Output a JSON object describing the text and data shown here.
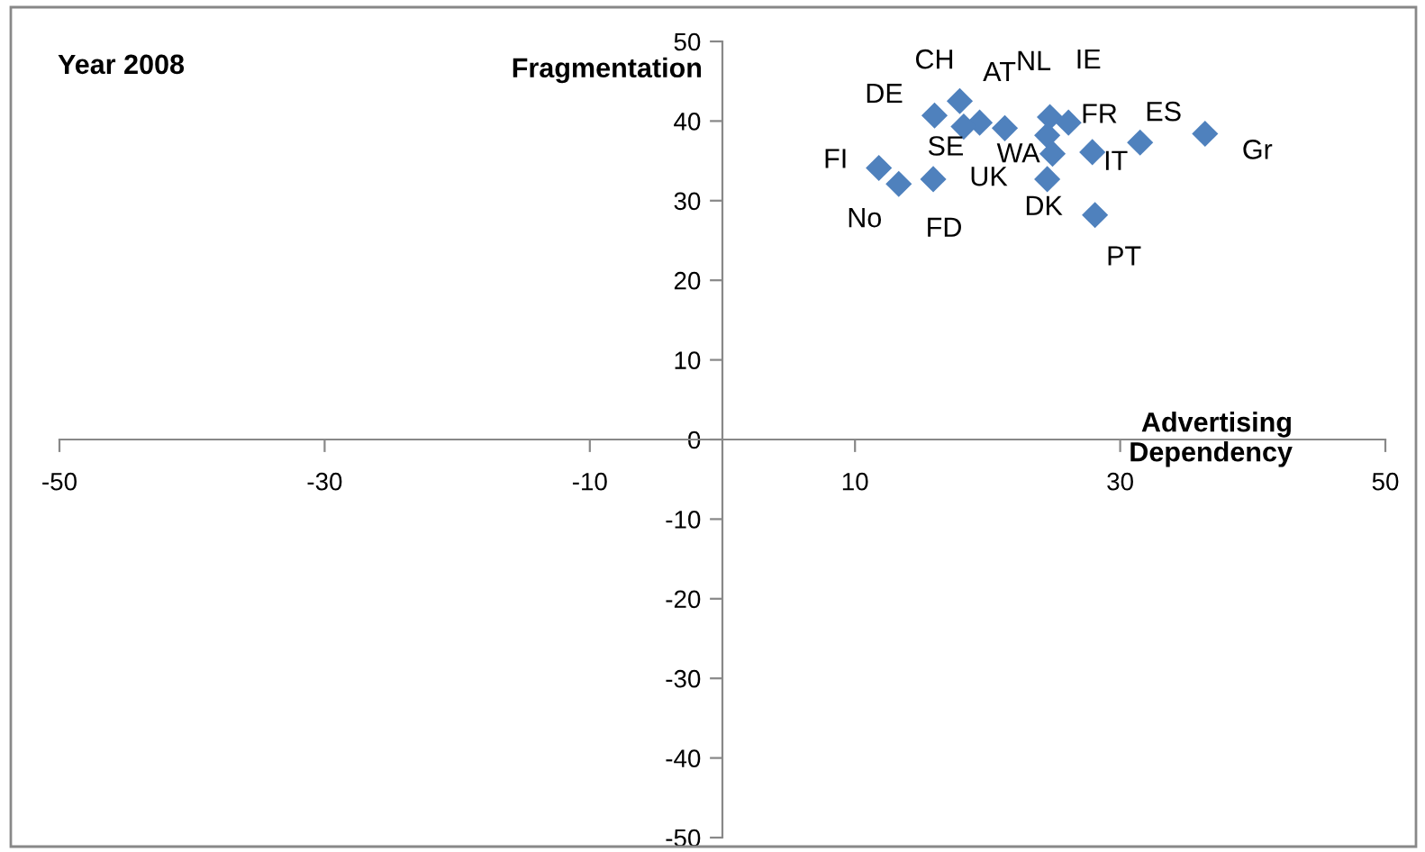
{
  "chart_data": {
    "type": "scatter",
    "title": "Year 2008",
    "xlabel": "Advertising\nDependency",
    "ylabel": "Fragmentation",
    "series": [
      {
        "color": "#4f81bd",
        "x": [
          16.0,
          17.9,
          19.4,
          18.2,
          21.3,
          24.7,
          26.1,
          24.5,
          24.9,
          27.9,
          31.5,
          36.4,
          11.8,
          13.3,
          15.9,
          24.5,
          28.1
        ],
        "values": [
          40.7,
          42.5,
          39.8,
          39.3,
          39.1,
          40.5,
          39.8,
          38.2,
          35.9,
          36.1,
          37.3,
          38.4,
          34.1,
          32.1,
          32.7,
          32.7,
          28.2
        ]
      }
    ],
    "annotations": [
      {
        "text": "DE",
        "x": 16.0,
        "y": 40.7
      },
      {
        "text": "CH",
        "x": 17.9,
        "y": 42.5
      },
      {
        "text": "AT",
        "x": 19.4,
        "y": 39.8
      },
      {
        "text": "SE",
        "x": 18.2,
        "y": 39.3
      },
      {
        "text": "UK",
        "x": 21.3,
        "y": 39.1
      },
      {
        "text": "NL",
        "x": 24.7,
        "y": 40.5
      },
      {
        "text": "IE",
        "x": 26.1,
        "y": 39.8
      },
      {
        "text": "WA",
        "x": 24.5,
        "y": 38.2
      },
      {
        "text": "FR",
        "x": 24.9,
        "y": 35.9
      },
      {
        "text": "IT",
        "x": 27.9,
        "y": 36.1
      },
      {
        "text": "ES",
        "x": 31.5,
        "y": 37.3
      },
      {
        "text": "Gr",
        "x": 36.4,
        "y": 38.4
      },
      {
        "text": "FI",
        "x": 11.8,
        "y": 34.1
      },
      {
        "text": "No",
        "x": 13.3,
        "y": 32.1
      },
      {
        "text": "FD",
        "x": 15.9,
        "y": 32.7
      },
      {
        "text": "DK",
        "x": 24.5,
        "y": 32.7
      },
      {
        "text": "PT",
        "x": 28.1,
        "y": 28.2
      }
    ],
    "xlim": [
      -50,
      50
    ],
    "ylim": [
      -50,
      50
    ],
    "xticks": [
      -50,
      -30,
      -10,
      10,
      30,
      50
    ],
    "yticks": [
      -50,
      -40,
      -30,
      -20,
      -10,
      0,
      10,
      20,
      30,
      40,
      50
    ],
    "marker": "diamond",
    "grid": false,
    "legend": false
  }
}
